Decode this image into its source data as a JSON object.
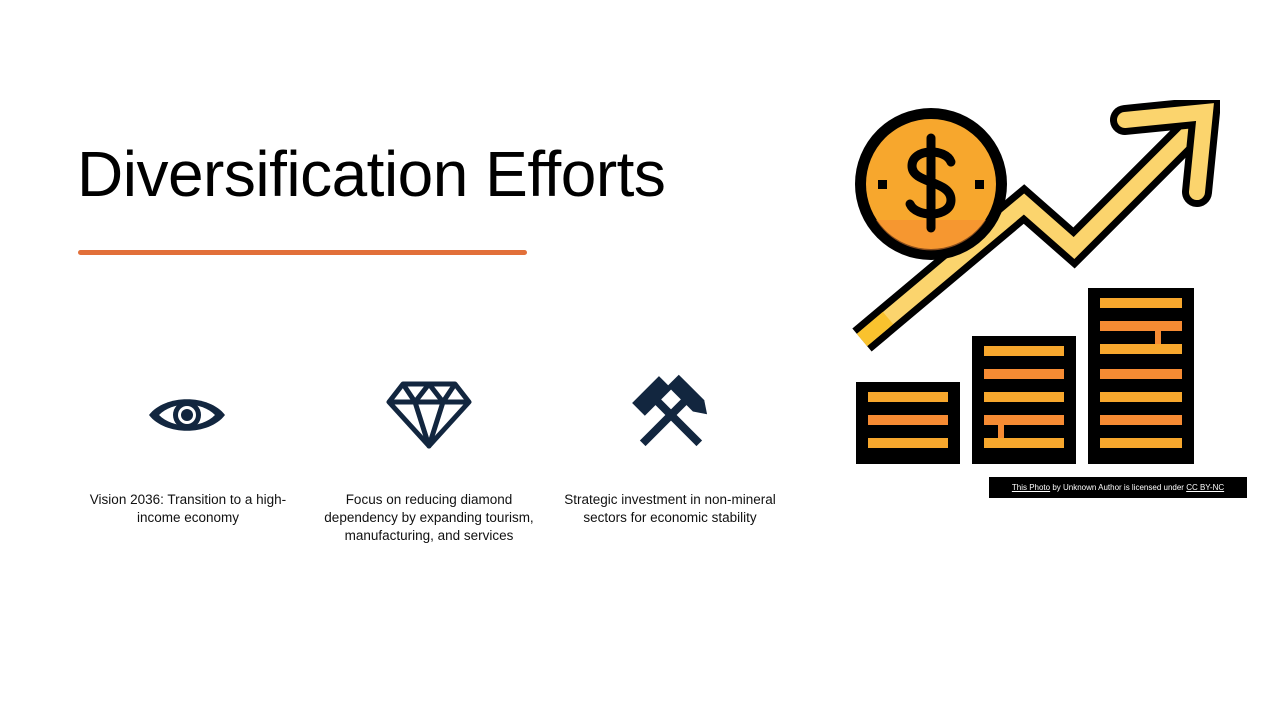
{
  "slide": {
    "title": "Diversification Efforts",
    "accent_color": "#e2703a"
  },
  "columns": [
    {
      "icon": "eye-icon",
      "text": "Vision 2036: Transition to a high-income economy"
    },
    {
      "icon": "diamond-icon",
      "text": "Focus on reducing diamond dependency by expanding tourism, manufacturing, and services"
    },
    {
      "icon": "hammers-icon",
      "text": "Strategic investment in non-mineral sectors for economic stability"
    }
  ],
  "image": {
    "icon": "dollar-growth-chart-icon",
    "credit": {
      "link_text": "This Photo",
      "middle_text": " by Unknown Author is licensed under ",
      "license_text": "CC BY-NC"
    }
  },
  "colors": {
    "icon_navy": "#12263f",
    "coin_orange": "#f7a72d",
    "arrow_yellow": "#fbd46d",
    "stripe_orange": "#f68b33"
  }
}
